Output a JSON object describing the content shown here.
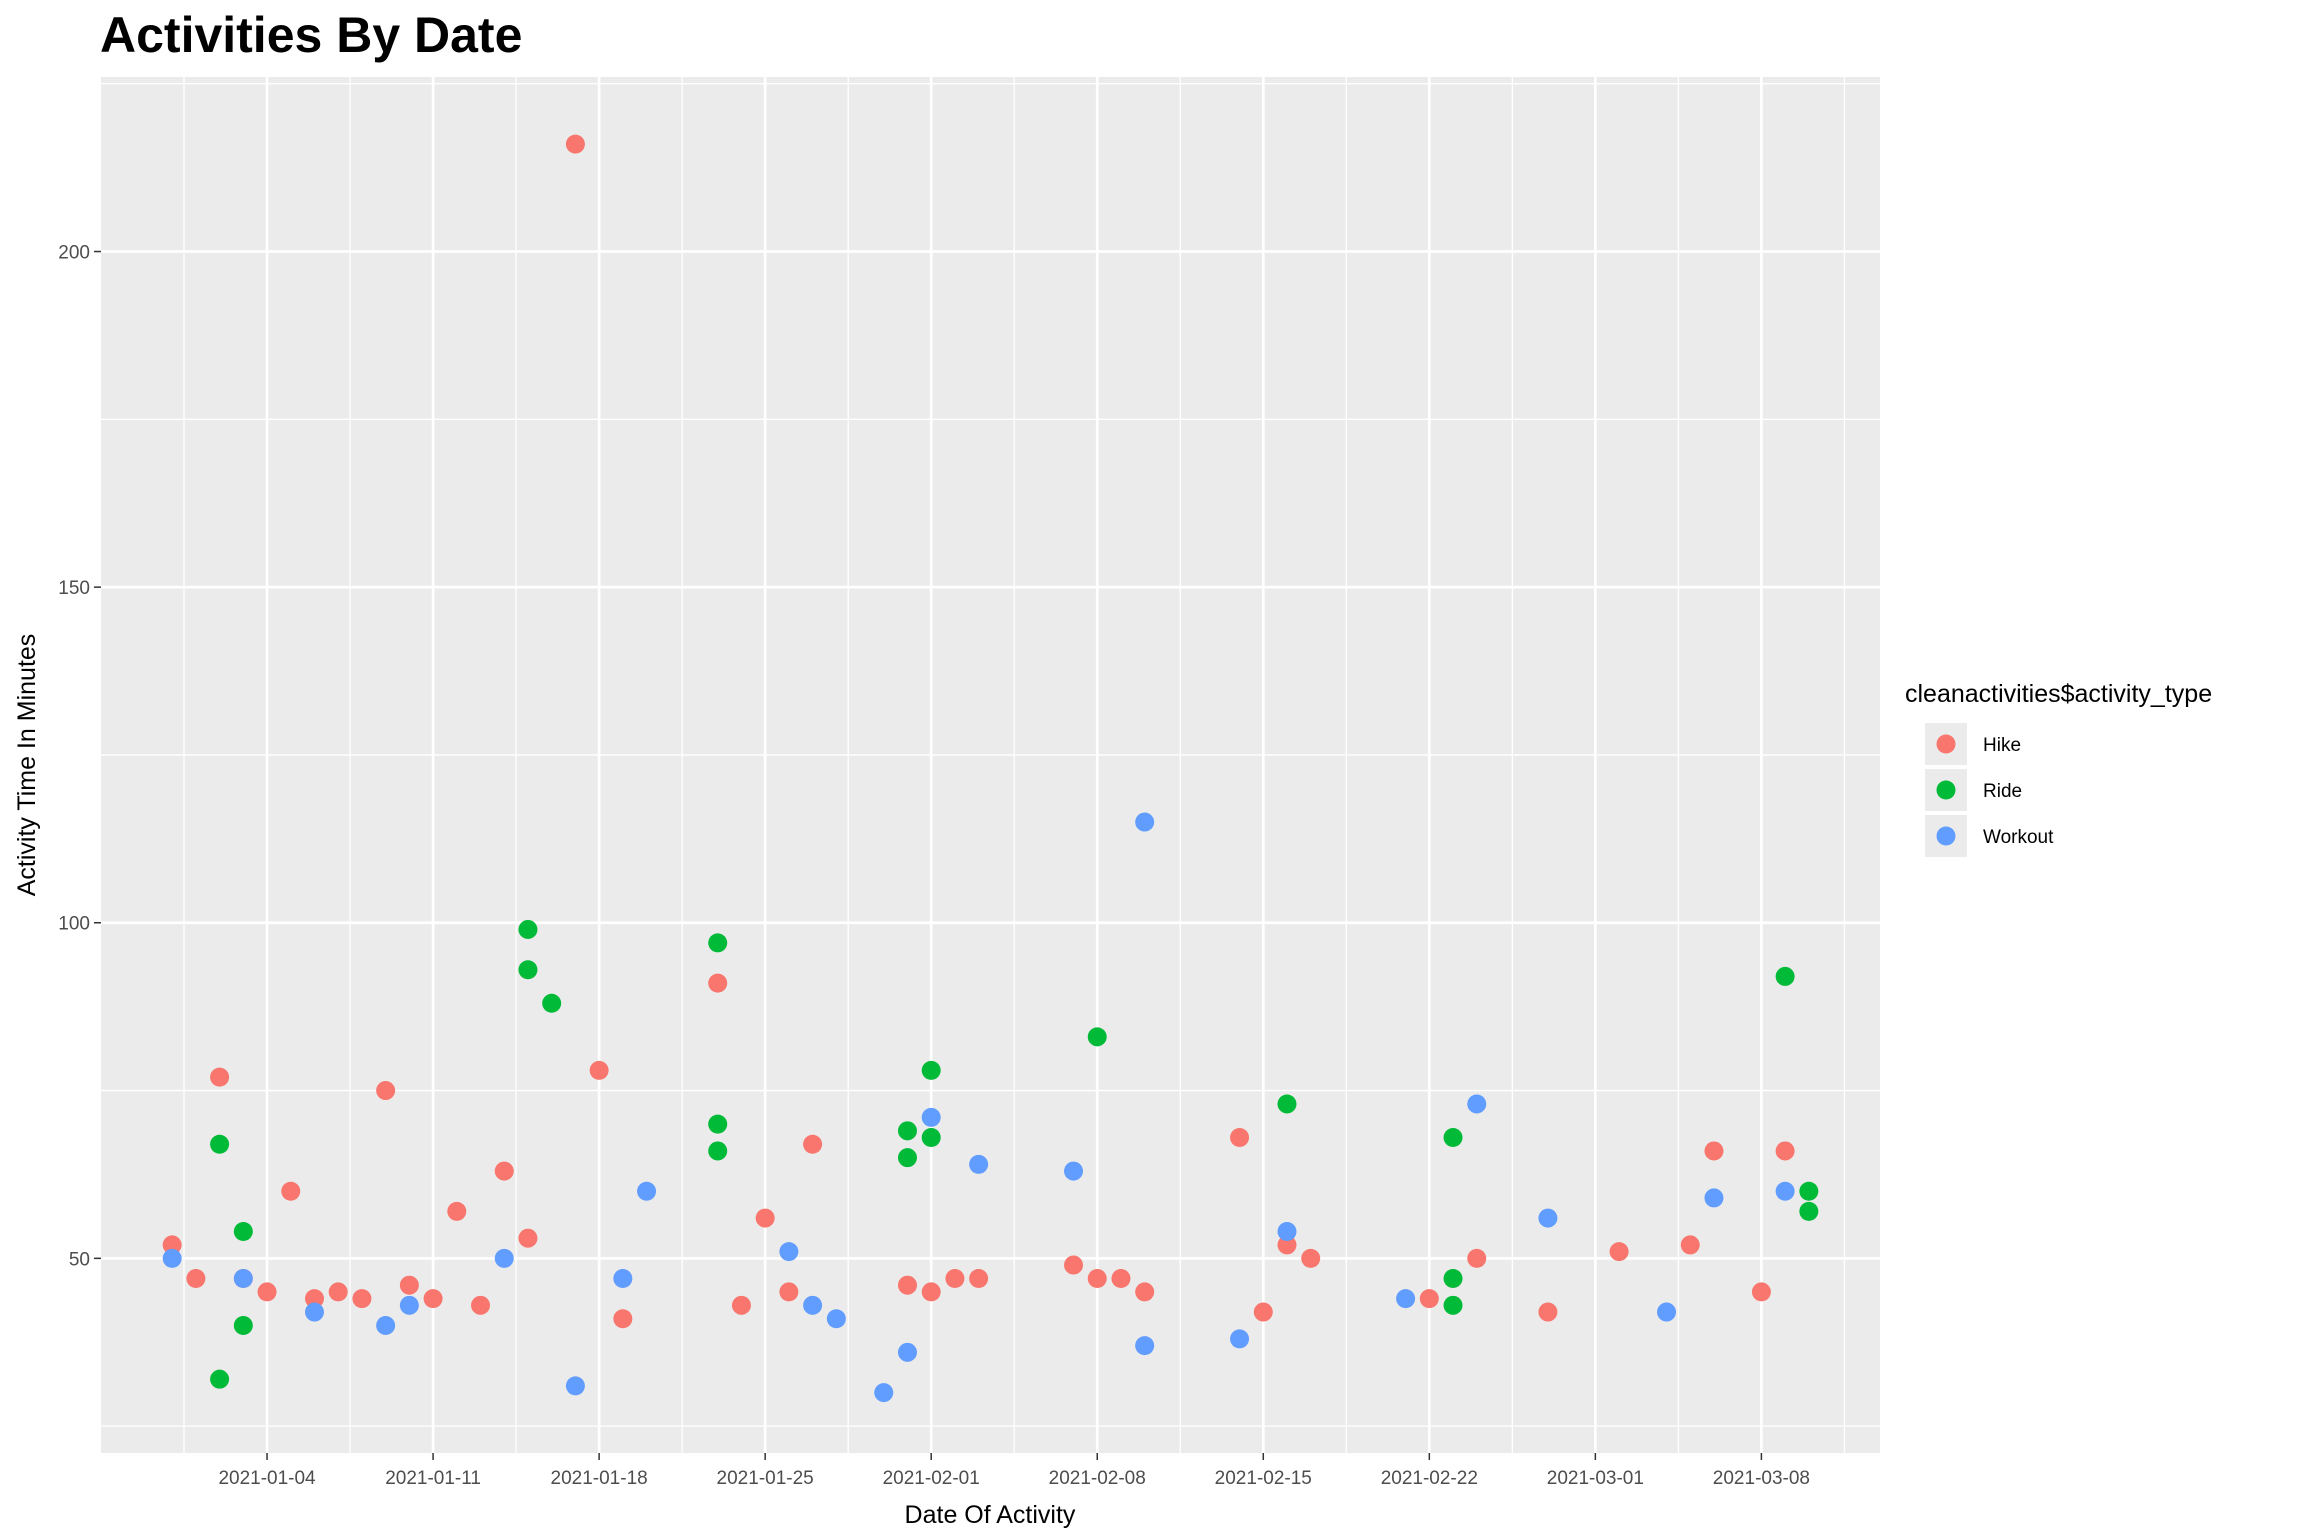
{
  "chart_data": {
    "type": "scatter",
    "title": "Activities By Date",
    "xlabel": "Date Of Activity",
    "ylabel": "Activity Time In Minutes",
    "x_is_date": true,
    "xlim": [
      "2020-12-28",
      "2021-03-13"
    ],
    "ylim": [
      21,
      226
    ],
    "x_ticks": [
      "2021-01-04",
      "2021-01-11",
      "2021-01-18",
      "2021-01-25",
      "2021-02-01",
      "2021-02-08",
      "2021-02-15",
      "2021-02-22",
      "2021-03-01",
      "2021-03-08"
    ],
    "y_ticks": [
      50,
      100,
      150,
      200
    ],
    "grid": true,
    "legend": {
      "title": "cleanactivities$activity_type",
      "position": "right"
    },
    "series": [
      {
        "name": "Hike",
        "color": "#F8766D",
        "points": [
          [
            "2020-12-31",
            52
          ],
          [
            "2021-01-01",
            47
          ],
          [
            "2021-01-02",
            77
          ],
          [
            "2021-01-03",
            47
          ],
          [
            "2021-01-04",
            45
          ],
          [
            "2021-01-05",
            60
          ],
          [
            "2021-01-06",
            44
          ],
          [
            "2021-01-07",
            45
          ],
          [
            "2021-01-08",
            44
          ],
          [
            "2021-01-09",
            75
          ],
          [
            "2021-01-10",
            46
          ],
          [
            "2021-01-11",
            44
          ],
          [
            "2021-01-12",
            57
          ],
          [
            "2021-01-13",
            43
          ],
          [
            "2021-01-14",
            63
          ],
          [
            "2021-01-15",
            53
          ],
          [
            "2021-01-17",
            216
          ],
          [
            "2021-01-18",
            78
          ],
          [
            "2021-01-19",
            41
          ],
          [
            "2021-01-23",
            91
          ],
          [
            "2021-01-24",
            43
          ],
          [
            "2021-01-25",
            56
          ],
          [
            "2021-01-26",
            45
          ],
          [
            "2021-01-27",
            67
          ],
          [
            "2021-01-31",
            46
          ],
          [
            "2021-02-01",
            45
          ],
          [
            "2021-02-02",
            47
          ],
          [
            "2021-02-03",
            47
          ],
          [
            "2021-02-07",
            49
          ],
          [
            "2021-02-08",
            47
          ],
          [
            "2021-02-09",
            47
          ],
          [
            "2021-02-10",
            45
          ],
          [
            "2021-02-14",
            68
          ],
          [
            "2021-02-15",
            42
          ],
          [
            "2021-02-16",
            52
          ],
          [
            "2021-02-17",
            50
          ],
          [
            "2021-02-22",
            44
          ],
          [
            "2021-02-24",
            50
          ],
          [
            "2021-02-27",
            42
          ],
          [
            "2021-03-02",
            51
          ],
          [
            "2021-03-05",
            52
          ],
          [
            "2021-03-06",
            66
          ],
          [
            "2021-03-08",
            45
          ],
          [
            "2021-03-09",
            66
          ]
        ]
      },
      {
        "name": "Ride",
        "color": "#00BA38",
        "points": [
          [
            "2021-01-02",
            67
          ],
          [
            "2021-01-02",
            32
          ],
          [
            "2021-01-03",
            54
          ],
          [
            "2021-01-03",
            40
          ],
          [
            "2021-01-15",
            99
          ],
          [
            "2021-01-15",
            93
          ],
          [
            "2021-01-16",
            88
          ],
          [
            "2021-01-23",
            97
          ],
          [
            "2021-01-23",
            66
          ],
          [
            "2021-01-23",
            70
          ],
          [
            "2021-01-31",
            69
          ],
          [
            "2021-01-31",
            65
          ],
          [
            "2021-02-01",
            78
          ],
          [
            "2021-02-01",
            68
          ],
          [
            "2021-02-08",
            83
          ],
          [
            "2021-02-16",
            73
          ],
          [
            "2021-02-23",
            68
          ],
          [
            "2021-02-23",
            47
          ],
          [
            "2021-02-23",
            43
          ],
          [
            "2021-03-09",
            92
          ],
          [
            "2021-03-10",
            60
          ],
          [
            "2021-03-10",
            57
          ]
        ]
      },
      {
        "name": "Workout",
        "color": "#619CFF",
        "points": [
          [
            "2020-12-31",
            50
          ],
          [
            "2021-01-03",
            47
          ],
          [
            "2021-01-06",
            42
          ],
          [
            "2021-01-09",
            40
          ],
          [
            "2021-01-10",
            43
          ],
          [
            "2021-01-14",
            50
          ],
          [
            "2021-01-17",
            31
          ],
          [
            "2021-01-19",
            47
          ],
          [
            "2021-01-20",
            60
          ],
          [
            "2021-01-26",
            51
          ],
          [
            "2021-01-27",
            43
          ],
          [
            "2021-01-28",
            41
          ],
          [
            "2021-01-30",
            30
          ],
          [
            "2021-01-31",
            36
          ],
          [
            "2021-02-01",
            71
          ],
          [
            "2021-02-03",
            64
          ],
          [
            "2021-02-07",
            63
          ],
          [
            "2021-02-10",
            115
          ],
          [
            "2021-02-10",
            37
          ],
          [
            "2021-02-14",
            38
          ],
          [
            "2021-02-16",
            54
          ],
          [
            "2021-02-21",
            44
          ],
          [
            "2021-02-24",
            73
          ],
          [
            "2021-02-27",
            56
          ],
          [
            "2021-03-04",
            42
          ],
          [
            "2021-03-06",
            59
          ],
          [
            "2021-03-09",
            60
          ]
        ]
      }
    ]
  }
}
